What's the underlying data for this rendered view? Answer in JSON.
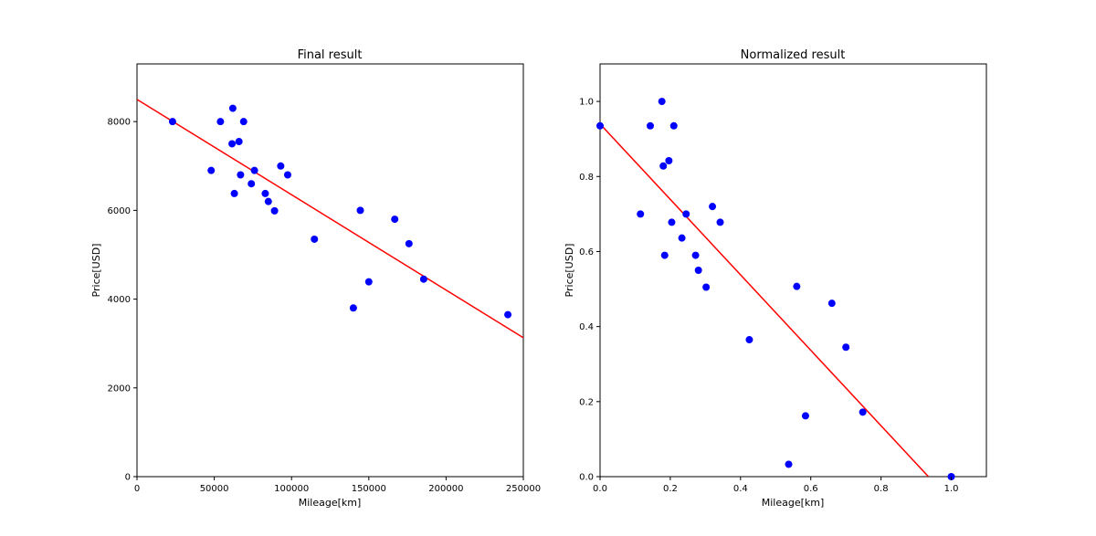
{
  "chart_data": [
    {
      "type": "scatter",
      "title": "Final result",
      "xlabel": "Mileage[km]",
      "ylabel": "Price[USD]",
      "xlim": [
        0,
        250000
      ],
      "ylim": [
        0,
        9300
      ],
      "xticks": [
        0,
        50000,
        100000,
        150000,
        200000,
        250000
      ],
      "yticks": [
        0,
        2000,
        4000,
        6000,
        8000
      ],
      "grid": false,
      "point_color": "#0000ff",
      "line_color": "#ff0000",
      "points": {
        "x": [
          23000,
          48000,
          54000,
          62000,
          61500,
          63000,
          66000,
          67000,
          69000,
          74000,
          76000,
          83000,
          85000,
          89000,
          93000,
          97500,
          114800,
          140000,
          144500,
          150000,
          166800,
          176000,
          185500,
          240000
        ],
        "y": [
          8000,
          6900,
          8000,
          8300,
          7500,
          6380,
          7550,
          6800,
          8000,
          6600,
          6900,
          6380,
          6200,
          5990,
          7000,
          6800,
          5350,
          3800,
          6000,
          4390,
          5800,
          5250,
          4450,
          3650
        ]
      },
      "fit_line": {
        "x": [
          0,
          250000
        ],
        "y": [
          8500,
          3130
        ]
      }
    },
    {
      "type": "scatter",
      "title": "Normalized result",
      "xlabel": "Mileage[km]",
      "ylabel": "Price[USD]",
      "xlim": [
        0,
        1.1
      ],
      "ylim": [
        0,
        1.1
      ],
      "xticks": [
        0.0,
        0.2,
        0.4,
        0.6,
        0.8,
        1.0
      ],
      "yticks": [
        0.0,
        0.2,
        0.4,
        0.6,
        0.8,
        1.0
      ],
      "grid": false,
      "point_color": "#0000ff",
      "line_color": "#ff0000",
      "points": {
        "x": [
          0.0,
          0.115,
          0.143,
          0.176,
          0.18,
          0.184,
          0.196,
          0.204,
          0.21,
          0.233,
          0.245,
          0.272,
          0.28,
          0.302,
          0.32,
          0.342,
          0.425,
          0.537,
          0.56,
          0.585,
          0.66,
          0.7,
          0.748,
          1.0
        ],
        "y": [
          0.935,
          0.7,
          0.935,
          1.0,
          0.828,
          0.59,
          0.842,
          0.678,
          0.935,
          0.636,
          0.7,
          0.59,
          0.55,
          0.505,
          0.72,
          0.678,
          0.365,
          0.033,
          0.507,
          0.162,
          0.462,
          0.345,
          0.172,
          0.0
        ]
      },
      "fit_line": {
        "x": [
          0.0,
          0.935
        ],
        "y": [
          0.94,
          0.0
        ]
      }
    }
  ]
}
